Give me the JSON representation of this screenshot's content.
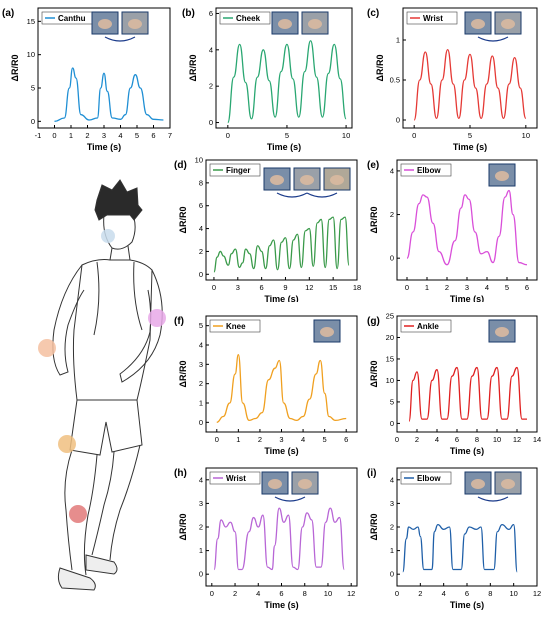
{
  "figure_person": {
    "markers": [
      "#d6e6f0",
      "#e8b4e8",
      "#f5c8b0",
      "#f0c89a",
      "#e88080"
    ]
  },
  "chart_data": [
    {
      "id": "a",
      "panel_label": "(a)",
      "legend": "Canthu",
      "color": "#1f8fd4",
      "type": "line",
      "xlabel": "Time (s)",
      "ylabel": "ΔR/R0",
      "xlim": [
        -1,
        7
      ],
      "ylim": [
        -1,
        17
      ],
      "xticks": [
        -1,
        0,
        1,
        2,
        3,
        4,
        5,
        6,
        7
      ],
      "yticks": [
        0,
        5,
        10,
        15
      ],
      "x": [
        0,
        0.6,
        0.9,
        1.1,
        1.3,
        1.6,
        2.1,
        2.6,
        2.8,
        3.0,
        3.2,
        3.5,
        4.0,
        4.3,
        4.6,
        4.9,
        5.2,
        5.6,
        6.0,
        6.6
      ],
      "y": [
        0,
        0.5,
        5,
        8,
        6.5,
        1,
        0.2,
        0.5,
        5,
        7.2,
        4.5,
        0.5,
        0.3,
        1,
        5,
        7,
        5,
        1,
        0.3,
        0.2
      ],
      "photos": 2,
      "arrow": true
    },
    {
      "id": "b",
      "panel_label": "(b)",
      "legend": "Cheek",
      "color": "#2aa772",
      "type": "line",
      "xlabel": "Time (s)",
      "ylabel": "ΔR/R0",
      "xlim": [
        -1,
        10.5
      ],
      "ylim": [
        -0.3,
        6.3
      ],
      "xticks": [
        0,
        5,
        10
      ],
      "yticks": [
        0,
        2,
        4,
        6
      ],
      "x": [
        0,
        0.5,
        1.0,
        1.5,
        2.0,
        2.5,
        3.0,
        3.5,
        4.0,
        4.5,
        5.0,
        5.5,
        6.0,
        6.5,
        7.0,
        7.5,
        8.0,
        8.5,
        9.0,
        9.5,
        10.0
      ],
      "y": [
        0,
        2.5,
        4.3,
        2.2,
        0.2,
        2.5,
        4.0,
        2.3,
        0.3,
        2.8,
        4.3,
        2.4,
        0.3,
        2.8,
        4.5,
        2.5,
        0.3,
        2.7,
        4.3,
        2.4,
        0.2
      ],
      "photos": 2,
      "arrow": false
    },
    {
      "id": "c",
      "panel_label": "(c)",
      "legend": "Wrist",
      "color": "#e53935",
      "type": "line",
      "xlabel": "Time (s)",
      "ylabel": "ΔR/R0",
      "xlim": [
        -1,
        11
      ],
      "ylim": [
        -0.1,
        1.4
      ],
      "xticks": [
        0,
        5,
        10
      ],
      "yticks": [
        0.0,
        0.5,
        1.0
      ],
      "x": [
        0,
        0.5,
        1.0,
        1.5,
        2.0,
        2.5,
        3.0,
        3.5,
        4.0,
        4.5,
        5.0,
        5.5,
        6.0,
        6.5,
        7.0,
        7.5,
        8.0,
        8.5,
        9.0,
        9.5,
        10.0
      ],
      "y": [
        0,
        0.5,
        0.85,
        0.45,
        0.02,
        0.5,
        0.88,
        0.45,
        0.02,
        0.5,
        0.82,
        0.4,
        0.02,
        0.45,
        0.8,
        0.4,
        0.02,
        0.45,
        0.78,
        0.4,
        0.02
      ],
      "photos": 2,
      "arrow": true
    },
    {
      "id": "d",
      "panel_label": "(d)",
      "legend": "Finger",
      "color": "#3a9a4a",
      "type": "line",
      "xlabel": "Time (s)",
      "ylabel": "ΔR/R0",
      "xlim": [
        -1,
        18
      ],
      "ylim": [
        -0.5,
        10
      ],
      "xticks": [
        0,
        3,
        6,
        9,
        12,
        15,
        18
      ],
      "yticks": [
        0,
        2,
        4,
        6,
        8,
        10
      ],
      "x": [
        0,
        0.4,
        0.8,
        1.2,
        1.8,
        2.2,
        2.7,
        3.2,
        3.6,
        4.0,
        4.5,
        5.0,
        5.5,
        6.0,
        6.5,
        7.0,
        7.5,
        8.0,
        8.5,
        9.0,
        9.5,
        10.0,
        10.5,
        11.0,
        11.5,
        12.0,
        12.5,
        13.0,
        13.5,
        14.0,
        14.5,
        15.0,
        15.5,
        16.0,
        16.5,
        17.0
      ],
      "y": [
        0.2,
        1.5,
        2.0,
        1.6,
        0.8,
        1.8,
        2.2,
        0.6,
        1.0,
        2.2,
        1.8,
        0.5,
        2.5,
        2.0,
        0.5,
        2.5,
        3.0,
        0.4,
        2.8,
        3.2,
        0.5,
        3.0,
        3.5,
        0.6,
        3.8,
        4.0,
        0.7,
        4.5,
        4.8,
        0.6,
        4.8,
        5.0,
        0.5,
        4.8,
        5.0,
        0.8
      ],
      "photos": 3,
      "arrow": true
    },
    {
      "id": "e",
      "panel_label": "(e)",
      "legend": "Elbow",
      "color": "#d94fd9",
      "type": "line",
      "xlabel": "Time (s)",
      "ylabel": "ΔR/R0",
      "xlim": [
        -0.5,
        6.5
      ],
      "ylim": [
        -1,
        4.5
      ],
      "xticks": [
        0,
        1,
        2,
        3,
        4,
        5,
        6
      ],
      "yticks": [
        0,
        2,
        4
      ],
      "x": [
        0,
        0.3,
        0.6,
        0.8,
        1.0,
        1.3,
        1.6,
        2.0,
        2.4,
        2.7,
        2.9,
        3.1,
        3.4,
        3.7,
        4.0,
        4.3,
        4.6,
        4.9,
        5.1,
        5.3,
        5.6,
        6.0
      ],
      "y": [
        0,
        1.2,
        2.5,
        2.9,
        2.8,
        1.6,
        0.3,
        -0.3,
        0.8,
        2.3,
        2.9,
        2.7,
        1.2,
        0.2,
        0.3,
        -0.2,
        1.0,
        2.8,
        3.1,
        2.0,
        -0.2,
        -0.3
      ],
      "photos": 1,
      "arrow": false
    },
    {
      "id": "f",
      "panel_label": "(f)",
      "legend": "Knee",
      "color": "#f0a020",
      "type": "line",
      "xlabel": "Time (s)",
      "ylabel": "ΔR/R0",
      "xlim": [
        -0.5,
        6.5
      ],
      "ylim": [
        -0.5,
        5.5
      ],
      "xticks": [
        0,
        1,
        2,
        3,
        4,
        5,
        6
      ],
      "yticks": [
        0,
        1,
        2,
        3,
        4,
        5
      ],
      "x": [
        0,
        0.3,
        0.6,
        0.85,
        1.0,
        1.2,
        1.5,
        1.8,
        2.1,
        2.4,
        2.7,
        2.9,
        3.1,
        3.4,
        3.7,
        4.0,
        4.3,
        4.6,
        4.8,
        5.0,
        5.2,
        5.5,
        6.0
      ],
      "y": [
        0,
        0.3,
        1.0,
        2.5,
        3.5,
        1.0,
        0.1,
        0.2,
        0.5,
        2.2,
        2.8,
        3.2,
        1.0,
        0.2,
        0.1,
        0.3,
        1.2,
        2.5,
        3.2,
        1.5,
        0.3,
        0.1,
        0.2
      ],
      "photos": 1,
      "arrow": false
    },
    {
      "id": "g",
      "panel_label": "(g)",
      "legend": "Ankle",
      "color": "#e02020",
      "type": "line",
      "xlabel": "Time (s)",
      "ylabel": "ΔR/R0",
      "xlim": [
        0,
        14
      ],
      "ylim": [
        -2,
        25
      ],
      "xticks": [
        0,
        2,
        4,
        6,
        8,
        10,
        12,
        14
      ],
      "yticks": [
        0,
        5,
        10,
        15,
        20,
        25
      ],
      "x": [
        1.2,
        1.6,
        2.0,
        2.5,
        3.0,
        3.5,
        4.0,
        4.5,
        5.0,
        5.5,
        6.0,
        6.5,
        7.0,
        7.5,
        8.0,
        8.5,
        9.0,
        9.5,
        10.0,
        10.5,
        11.0,
        11.5,
        12.0,
        12.5,
        13.0
      ],
      "y": [
        0.5,
        10,
        12,
        1,
        1,
        10,
        12.5,
        1,
        1,
        11,
        13,
        1,
        1,
        11,
        13,
        1,
        1,
        11,
        13,
        1,
        1,
        11,
        13,
        1,
        1
      ],
      "photos": 1,
      "arrow": false
    },
    {
      "id": "h",
      "panel_label": "(h)",
      "legend": "Wrist",
      "color": "#b866d6",
      "type": "line",
      "xlabel": "Time (s)",
      "ylabel": "ΔR/R0",
      "xlim": [
        -0.5,
        12.5
      ],
      "ylim": [
        -0.5,
        4.5
      ],
      "xticks": [
        0,
        2,
        4,
        6,
        8,
        10,
        12
      ],
      "yticks": [
        0,
        1,
        2,
        3,
        4
      ],
      "x": [
        0.2,
        0.5,
        0.8,
        1.2,
        1.6,
        2.0,
        2.3,
        2.6,
        3.2,
        3.6,
        4.0,
        4.4,
        4.8,
        5.2,
        5.4,
        5.8,
        6.2,
        6.6,
        7.0,
        7.4,
        7.8,
        8.2,
        8.6,
        9.0,
        9.4,
        9.8,
        10.2,
        10.6,
        11.0,
        11.4
      ],
      "y": [
        0.2,
        1.5,
        2.3,
        2.0,
        2.2,
        1.8,
        0.2,
        0.2,
        1.8,
        2.4,
        2.0,
        2.5,
        0.3,
        0.2,
        1.2,
        2.8,
        2.2,
        2.5,
        0.3,
        0.2,
        2.0,
        2.6,
        2.3,
        0.3,
        0.3,
        2.2,
        2.8,
        2.2,
        2.4,
        0.2
      ],
      "photos": 2,
      "arrow": true
    },
    {
      "id": "i",
      "panel_label": "(i)",
      "legend": "Elbow",
      "color": "#1f5fa8",
      "type": "line",
      "xlabel": "Time (s)",
      "ylabel": "ΔR/R0",
      "xlim": [
        0,
        12
      ],
      "ylim": [
        -0.5,
        4.5
      ],
      "xticks": [
        0,
        2,
        4,
        6,
        8,
        10,
        12
      ],
      "yticks": [
        0,
        1,
        2,
        3,
        4
      ],
      "x": [
        0.5,
        0.8,
        1.0,
        1.4,
        1.8,
        2.0,
        2.3,
        3.0,
        3.2,
        3.5,
        4.0,
        4.5,
        4.8,
        5.5,
        5.8,
        6.2,
        6.8,
        7.2,
        7.5,
        8.3,
        8.6,
        9.0,
        9.6,
        10.0,
        10.3
      ],
      "y": [
        0.1,
        1.5,
        2.0,
        1.9,
        2.0,
        1.6,
        0.2,
        0.2,
        1.8,
        2.1,
        1.9,
        2.0,
        0.2,
        0.2,
        1.7,
        2.0,
        1.9,
        2.0,
        0.2,
        0.2,
        1.8,
        2.1,
        1.9,
        2.1,
        0.1
      ],
      "photos": 2,
      "arrow": true
    }
  ]
}
